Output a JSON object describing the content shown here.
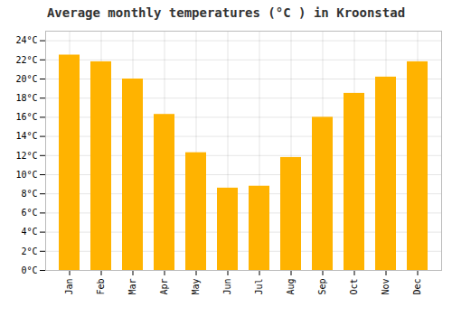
{
  "chart_data": {
    "type": "bar",
    "title": "Average monthly temperatures (°C ) in Kroonstad",
    "categories": [
      "Jan",
      "Feb",
      "Mar",
      "Apr",
      "May",
      "Jun",
      "Jul",
      "Aug",
      "Sep",
      "Oct",
      "Nov",
      "Dec"
    ],
    "values": [
      22.5,
      21.8,
      20.0,
      16.3,
      12.3,
      8.6,
      8.8,
      11.8,
      16.0,
      18.5,
      20.2,
      21.8
    ],
    "color": "#FFB300",
    "ylim": [
      0,
      25
    ],
    "yticks": [
      {
        "value": 0,
        "label": "0°C"
      },
      {
        "value": 2,
        "label": "2°C"
      },
      {
        "value": 4,
        "label": "4°C"
      },
      {
        "value": 6,
        "label": "6°C"
      },
      {
        "value": 8,
        "label": "8°C"
      },
      {
        "value": 10,
        "label": "10°C"
      },
      {
        "value": 12,
        "label": "12°C"
      },
      {
        "value": 14,
        "label": "14°C"
      },
      {
        "value": 16,
        "label": "16°C"
      },
      {
        "value": 18,
        "label": "18°C"
      },
      {
        "value": 20,
        "label": "20°C"
      },
      {
        "value": 22,
        "label": "22°C"
      },
      {
        "value": 24,
        "label": "24°C"
      }
    ],
    "grid": true
  }
}
